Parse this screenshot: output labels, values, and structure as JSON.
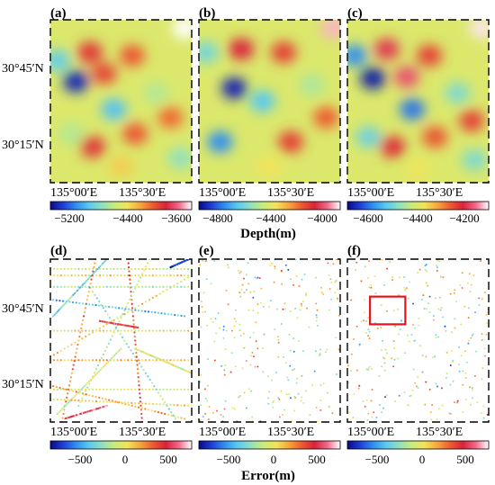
{
  "chart_data": [
    {
      "type": "heatmap",
      "panel_label": "(a)",
      "x_ticks": [
        "135°00′E",
        "135°30′E"
      ],
      "y_ticks": [
        "30°45′N",
        "30°15′N"
      ],
      "colorbar": {
        "ticks": [
          -5200,
          -4400,
          -3600
        ],
        "range": [
          -5400,
          -3500
        ],
        "label": "Depth(m)"
      },
      "features": [
        {
          "x": 0.95,
          "y": 0.05,
          "value": -3500
        },
        {
          "x": 0.28,
          "y": 0.2,
          "value": -3900
        },
        {
          "x": 0.58,
          "y": 0.22,
          "value": -4000
        },
        {
          "x": 0.38,
          "y": 0.33,
          "value": -3950
        },
        {
          "x": 0.18,
          "y": 0.38,
          "value": -5300
        },
        {
          "x": 0.45,
          "y": 0.55,
          "value": -4900
        },
        {
          "x": 0.15,
          "y": 0.7,
          "value": -4600
        },
        {
          "x": 0.3,
          "y": 0.78,
          "value": -3900
        },
        {
          "x": 0.6,
          "y": 0.7,
          "value": -4000
        },
        {
          "x": 0.75,
          "y": 0.45,
          "value": -4600
        },
        {
          "x": 0.85,
          "y": 0.6,
          "value": -4050
        },
        {
          "x": 0.05,
          "y": 0.25,
          "value": -4850
        },
        {
          "x": 0.92,
          "y": 0.85,
          "value": -4700
        },
        {
          "x": 0.5,
          "y": 0.9,
          "value": -4300
        }
      ]
    },
    {
      "type": "heatmap",
      "panel_label": "(b)",
      "x_ticks": [
        "135°00′E",
        "135°30′E"
      ],
      "y_ticks": [],
      "colorbar": {
        "ticks": [
          -4800,
          -4400,
          -4000
        ],
        "range": [
          -4900,
          -3800
        ],
        "label": "Depth(m)"
      },
      "features": [
        {
          "x": 0.95,
          "y": 0.05,
          "value": -3850
        },
        {
          "x": 0.3,
          "y": 0.18,
          "value": -4000
        },
        {
          "x": 0.6,
          "y": 0.2,
          "value": -4050
        },
        {
          "x": 0.25,
          "y": 0.42,
          "value": -4850
        },
        {
          "x": 0.45,
          "y": 0.5,
          "value": -4600
        },
        {
          "x": 0.15,
          "y": 0.75,
          "value": -4700
        },
        {
          "x": 0.65,
          "y": 0.75,
          "value": -4050
        },
        {
          "x": 0.8,
          "y": 0.4,
          "value": -4450
        },
        {
          "x": 0.9,
          "y": 0.6,
          "value": -4100
        },
        {
          "x": 0.05,
          "y": 0.2,
          "value": -4550
        },
        {
          "x": 0.5,
          "y": 0.9,
          "value": -4300
        }
      ]
    },
    {
      "type": "heatmap",
      "panel_label": "(c)",
      "x_ticks": [
        "135°00′E",
        "135°30′E"
      ],
      "y_ticks": [],
      "colorbar": {
        "ticks": [
          -4600,
          -4400,
          -4200
        ],
        "range": [
          -4700,
          -4050
        ],
        "label": "Depth(m)"
      },
      "features": [
        {
          "x": 0.95,
          "y": 0.05,
          "value": -4060
        },
        {
          "x": 0.28,
          "y": 0.18,
          "value": -4150
        },
        {
          "x": 0.58,
          "y": 0.22,
          "value": -4200
        },
        {
          "x": 0.42,
          "y": 0.35,
          "value": -4130
        },
        {
          "x": 0.18,
          "y": 0.36,
          "value": -4680
        },
        {
          "x": 0.46,
          "y": 0.55,
          "value": -4600
        },
        {
          "x": 0.15,
          "y": 0.72,
          "value": -4500
        },
        {
          "x": 0.32,
          "y": 0.78,
          "value": -4180
        },
        {
          "x": 0.62,
          "y": 0.72,
          "value": -4220
        },
        {
          "x": 0.78,
          "y": 0.45,
          "value": -4480
        },
        {
          "x": 0.88,
          "y": 0.62,
          "value": -4200
        },
        {
          "x": 0.05,
          "y": 0.22,
          "value": -4580
        },
        {
          "x": 0.9,
          "y": 0.86,
          "value": -4480
        },
        {
          "x": 0.5,
          "y": 0.92,
          "value": -4350
        }
      ]
    },
    {
      "type": "scatter",
      "panel_label": "(d)",
      "x_ticks": [
        "135°00′E",
        "135°30′E"
      ],
      "y_ticks": [
        "30°45′N",
        "30°15′N"
      ],
      "colorbar": {
        "ticks": [
          -500,
          0,
          500
        ],
        "range": [
          -800,
          800
        ],
        "label": "Error(m)"
      },
      "tracks": [
        {
          "x1": 0.0,
          "y1": 0.06,
          "x2": 1.0,
          "y2": 0.06,
          "value": -50
        },
        {
          "x1": 0.0,
          "y1": 0.1,
          "x2": 1.0,
          "y2": 0.1,
          "value": 100
        },
        {
          "x1": 0.0,
          "y1": 0.17,
          "x2": 1.0,
          "y2": 0.17,
          "value": -150
        },
        {
          "x1": 0.0,
          "y1": 0.44,
          "x2": 1.0,
          "y2": 0.44,
          "value": 50
        },
        {
          "x1": 0.0,
          "y1": 0.62,
          "x2": 1.0,
          "y2": 0.62,
          "value": 150
        },
        {
          "x1": 0.0,
          "y1": 0.8,
          "x2": 1.0,
          "y2": 0.8,
          "value": 0
        },
        {
          "x1": 0.02,
          "y1": 0.35,
          "x2": 0.4,
          "y2": 0.0,
          "value": -300
        },
        {
          "x1": 0.08,
          "y1": 1.0,
          "x2": 0.32,
          "y2": 0.0,
          "value": 300
        },
        {
          "x1": 0.3,
          "y1": 0.2,
          "x2": 0.9,
          "y2": 1.0,
          "value": -200
        },
        {
          "x1": 0.0,
          "y1": 0.6,
          "x2": 1.0,
          "y2": 0.1,
          "value": 100
        },
        {
          "x1": 0.02,
          "y1": 0.78,
          "x2": 0.95,
          "y2": 0.98,
          "value": 200
        },
        {
          "x1": 0.55,
          "y1": 0.0,
          "x2": 0.65,
          "y2": 1.0,
          "value": 400
        },
        {
          "x1": 0.7,
          "y1": 0.0,
          "x2": 0.2,
          "y2": 0.9,
          "value": -100
        },
        {
          "x1": 0.85,
          "y1": 0.05,
          "x2": 0.98,
          "y2": 0.0,
          "value": -650
        },
        {
          "x1": 0.35,
          "y1": 0.38,
          "x2": 0.62,
          "y2": 0.42,
          "value": 550
        },
        {
          "x1": 0.05,
          "y1": 0.95,
          "x2": 0.5,
          "y2": 0.55,
          "value": -50
        },
        {
          "x1": 0.6,
          "y1": 0.55,
          "x2": 1.0,
          "y2": 0.7,
          "value": 0
        },
        {
          "x1": 0.02,
          "y1": 0.25,
          "x2": 0.95,
          "y2": 0.35,
          "value": -400
        },
        {
          "x1": 0.0,
          "y1": 0.86,
          "x2": 1.0,
          "y2": 0.9,
          "value": 100
        },
        {
          "x1": 0.1,
          "y1": 0.98,
          "x2": 0.4,
          "y2": 0.9,
          "value": 600
        }
      ]
    },
    {
      "type": "scatter",
      "panel_label": "(e)",
      "x_ticks": [
        "135°00′E",
        "135°30′E"
      ],
      "y_ticks": [],
      "colorbar": {
        "ticks": [
          -500,
          0,
          500
        ],
        "range": [
          -800,
          800
        ],
        "label": "Error(m)"
      },
      "scatter_seed": 7,
      "scatter_count": 260
    },
    {
      "type": "scatter",
      "panel_label": "(f)",
      "x_ticks": [
        "135°00′E",
        "135°30′E"
      ],
      "y_ticks": [],
      "colorbar": {
        "ticks": [
          -500,
          0,
          500
        ],
        "range": [
          -800,
          800
        ],
        "label": "Error(m)"
      },
      "scatter_seed": 19,
      "scatter_count": 260,
      "highlight": {
        "x": 0.16,
        "y": 0.23,
        "w": 0.25,
        "h": 0.17,
        "color": "#e8141b"
      }
    }
  ],
  "labels": {
    "a": "(a)",
    "b": "(b)",
    "c": "(c)",
    "d": "(d)",
    "e": "(e)",
    "f": "(f)",
    "lat1": "30°45′N",
    "lat2": "30°15′N",
    "lat3": "30°45′N",
    "lat4": "30°15′N",
    "xa1": "135°00′E",
    "xa2": "135°30′E",
    "xb1": "135°00′E",
    "xb2": "135°30′E",
    "xc1": "135°00′E",
    "xc2": "135°30′E",
    "xd1": "135°00′E",
    "xd2": "135°30′E",
    "xe1": "135°00′E",
    "xe2": "135°30′E",
    "xf1": "135°00′E",
    "xf2": "135°30′E",
    "cb_a1": "−5200",
    "cb_a2": "−4400",
    "cb_a3": "−3600",
    "cb_b1": "−4800",
    "cb_b2": "−4400",
    "cb_b3": "−4000",
    "cb_c1": "−4600",
    "cb_c2": "−4400",
    "cb_c3": "−4200",
    "cb_d1": "−500",
    "cb_d2": "0",
    "cb_d3": "500",
    "cb_e1": "−500",
    "cb_e2": "0",
    "cb_e3": "500",
    "cb_f1": "−500",
    "cb_f2": "0",
    "cb_f3": "500",
    "depth_label": "Depth(m)",
    "error_label": "Error(m)"
  },
  "colormap": [
    "#08088a",
    "#1f3fd6",
    "#2f8ff0",
    "#59c9f0",
    "#8fe0c0",
    "#c9ec7a",
    "#f2e35a",
    "#f7a63c",
    "#ee5a30",
    "#d9223a",
    "#f06a8a",
    "#ffffff"
  ]
}
